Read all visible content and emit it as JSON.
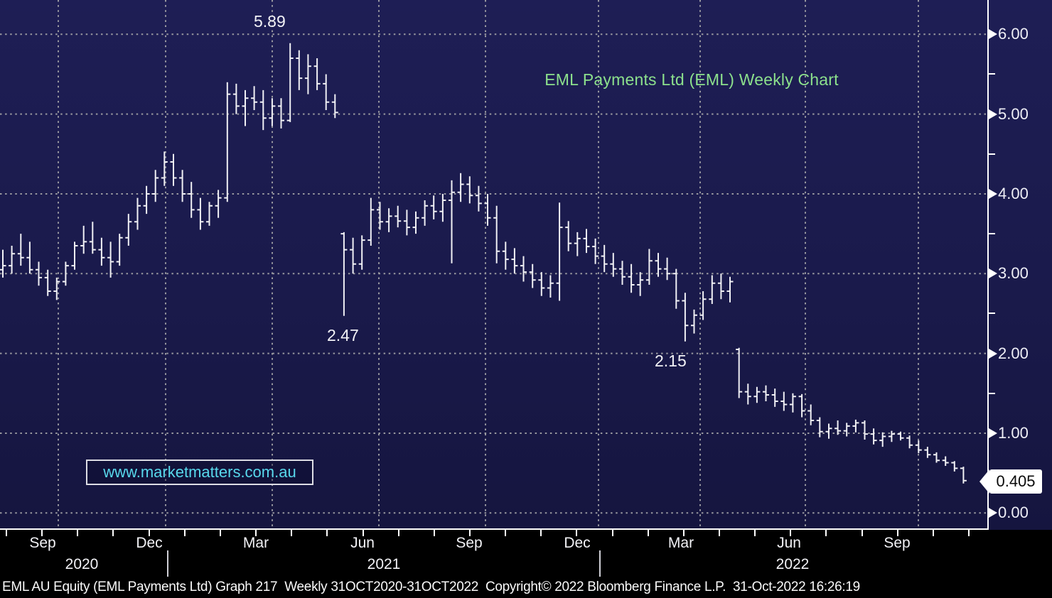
{
  "watermark": {
    "text": "www.marketmatters.com.au"
  },
  "footer": {
    "text": "EML AU Equity (EML Payments Ltd) Graph 217  Weekly 31OCT2020-31OCT2022  Copyright© 2022 Bloomberg Finance L.P.  31-Oct-2022 16:26:19"
  },
  "colors": {
    "background": "#1a1a4b",
    "bars": "#f0f0f4",
    "gridline": "#98989f",
    "title_green": "#8ce08c",
    "watermark_cyan": "#58d8ec",
    "axis_white": "#ffffff",
    "last_price_bg": "#ffffff",
    "last_price_text": "#0a0a0a",
    "footer_bg": "#000000"
  },
  "chart_data": {
    "type": "ohlc-bars",
    "title": "EML Payments Ltd (EML) Weekly Chart",
    "period": "Weekly",
    "ylabel": "",
    "xlabel": "",
    "ylim": [
      0,
      6.43
    ],
    "grid": true,
    "y_axis_side": "right",
    "y_ticks": [
      {
        "label": "6.00",
        "value": 6
      },
      {
        "label": "5.00",
        "value": 5
      },
      {
        "label": "4.00",
        "value": 4
      },
      {
        "label": "3.00",
        "value": 3
      },
      {
        "label": "2.00",
        "value": 2
      },
      {
        "label": "1.00",
        "value": 1
      },
      {
        "label": "0.00",
        "value": 0
      }
    ],
    "y_minor_ticks": [
      0.5,
      1.5,
      2.5,
      3.5,
      4.5,
      5.5
    ],
    "x_axis": {
      "month_labels": [
        "Sep",
        "Dec",
        "Mar",
        "Jun",
        "Sep",
        "Dec",
        "Mar",
        "Jun",
        "Sep"
      ],
      "year_labels": [
        "2020",
        "2021",
        "2022"
      ]
    },
    "annotations": [
      {
        "text": "5.89",
        "type": "peak-high",
        "value": 5.89
      },
      {
        "text": "2.47",
        "type": "crash-low",
        "value": 2.47
      },
      {
        "text": "2.15",
        "type": "swing-low",
        "value": 2.15
      }
    ],
    "last_price": {
      "label": "0.405",
      "value": 0.405
    },
    "bars_ohlc_note": "weekly bars [open, high, low, close], Aug 2020 - Oct 2022, estimated from pixels",
    "bars": [
      [
        3.05,
        3.3,
        2.95,
        3.1
      ],
      [
        3.1,
        3.35,
        3.0,
        3.25
      ],
      [
        3.25,
        3.5,
        3.1,
        3.2
      ],
      [
        3.2,
        3.4,
        3.0,
        3.05
      ],
      [
        3.05,
        3.15,
        2.85,
        2.95
      ],
      [
        2.95,
        3.05,
        2.72,
        2.78
      ],
      [
        2.78,
        2.95,
        2.67,
        2.9
      ],
      [
        2.9,
        3.15,
        2.85,
        3.1
      ],
      [
        3.1,
        3.4,
        3.05,
        3.35
      ],
      [
        3.35,
        3.6,
        3.25,
        3.4
      ],
      [
        3.4,
        3.65,
        3.25,
        3.3
      ],
      [
        3.3,
        3.45,
        3.1,
        3.2
      ],
      [
        3.2,
        3.4,
        2.95,
        3.15
      ],
      [
        3.15,
        3.5,
        3.1,
        3.45
      ],
      [
        3.45,
        3.75,
        3.35,
        3.65
      ],
      [
        3.65,
        3.95,
        3.55,
        3.85
      ],
      [
        3.85,
        4.1,
        3.75,
        4.0
      ],
      [
        4.0,
        4.3,
        3.9,
        4.2
      ],
      [
        4.2,
        4.53,
        4.1,
        4.4
      ],
      [
        4.4,
        4.5,
        4.1,
        4.2
      ],
      [
        4.2,
        4.3,
        3.9,
        4.0
      ],
      [
        4.0,
        4.15,
        3.7,
        3.8
      ],
      [
        3.8,
        3.95,
        3.55,
        3.65
      ],
      [
        3.65,
        3.9,
        3.6,
        3.85
      ],
      [
        3.85,
        4.05,
        3.7,
        3.95
      ],
      [
        3.95,
        5.4,
        3.9,
        5.25
      ],
      [
        5.25,
        5.38,
        5.0,
        5.1
      ],
      [
        5.1,
        5.3,
        4.85,
        5.2
      ],
      [
        5.2,
        5.35,
        5.05,
        5.15
      ],
      [
        5.15,
        5.3,
        4.8,
        4.95
      ],
      [
        4.95,
        5.2,
        4.85,
        5.1
      ],
      [
        5.1,
        5.2,
        4.82,
        4.92
      ],
      [
        4.92,
        5.89,
        4.9,
        5.7
      ],
      [
        5.7,
        5.8,
        5.3,
        5.45
      ],
      [
        5.45,
        5.75,
        5.25,
        5.6
      ],
      [
        5.6,
        5.7,
        5.3,
        5.38
      ],
      [
        5.38,
        5.5,
        5.05,
        5.15
      ],
      [
        5.15,
        5.25,
        4.95,
        5.02
      ],
      [
        3.5,
        3.52,
        2.47,
        3.3
      ],
      [
        3.3,
        3.45,
        3.0,
        3.12
      ],
      [
        3.12,
        3.48,
        3.05,
        3.42
      ],
      [
        3.42,
        3.95,
        3.35,
        3.8
      ],
      [
        3.8,
        3.9,
        3.55,
        3.65
      ],
      [
        3.65,
        3.82,
        3.52,
        3.72
      ],
      [
        3.72,
        3.85,
        3.58,
        3.66
      ],
      [
        3.66,
        3.8,
        3.48,
        3.58
      ],
      [
        3.58,
        3.78,
        3.5,
        3.7
      ],
      [
        3.7,
        3.92,
        3.6,
        3.85
      ],
      [
        3.85,
        3.98,
        3.68,
        3.78
      ],
      [
        3.78,
        4.0,
        3.65,
        3.92
      ],
      [
        3.92,
        4.17,
        3.13,
        4.02
      ],
      [
        4.02,
        4.26,
        3.9,
        4.12
      ],
      [
        4.12,
        4.22,
        3.88,
        3.98
      ],
      [
        3.98,
        4.1,
        3.78,
        3.88
      ],
      [
        3.88,
        4.0,
        3.6,
        3.7
      ],
      [
        3.7,
        3.85,
        3.13,
        3.28
      ],
      [
        3.28,
        3.4,
        3.05,
        3.18
      ],
      [
        3.18,
        3.32,
        3.0,
        3.1
      ],
      [
        3.1,
        3.22,
        2.9,
        3.02
      ],
      [
        3.02,
        3.12,
        2.82,
        2.92
      ],
      [
        2.92,
        3.02,
        2.72,
        2.82
      ],
      [
        2.82,
        2.98,
        2.7,
        2.88
      ],
      [
        2.88,
        3.89,
        2.66,
        3.58
      ],
      [
        3.58,
        3.66,
        3.28,
        3.38
      ],
      [
        3.38,
        3.52,
        3.22,
        3.44
      ],
      [
        3.44,
        3.56,
        3.26,
        3.34
      ],
      [
        3.34,
        3.44,
        3.12,
        3.22
      ],
      [
        3.22,
        3.36,
        3.02,
        3.12
      ],
      [
        3.12,
        3.26,
        2.96,
        3.06
      ],
      [
        3.06,
        3.16,
        2.86,
        2.96
      ],
      [
        2.96,
        3.12,
        2.76,
        2.86
      ],
      [
        2.86,
        3.02,
        2.72,
        2.92
      ],
      [
        2.92,
        3.31,
        2.86,
        3.16
      ],
      [
        3.16,
        3.26,
        2.96,
        3.06
      ],
      [
        3.06,
        3.2,
        2.92,
        3.0
      ],
      [
        3.0,
        3.06,
        2.56,
        2.66
      ],
      [
        2.66,
        2.76,
        2.15,
        2.35
      ],
      [
        2.35,
        2.55,
        2.25,
        2.48
      ],
      [
        2.48,
        2.78,
        2.42,
        2.68
      ],
      [
        2.68,
        2.98,
        2.62,
        2.88
      ],
      [
        2.88,
        3.0,
        2.68,
        2.78
      ],
      [
        2.78,
        2.96,
        2.64,
        2.9
      ],
      [
        2.05,
        2.07,
        1.44,
        1.52
      ],
      [
        1.52,
        1.62,
        1.36,
        1.46
      ],
      [
        1.46,
        1.58,
        1.38,
        1.52
      ],
      [
        1.52,
        1.6,
        1.4,
        1.48
      ],
      [
        1.48,
        1.56,
        1.33,
        1.4
      ],
      [
        1.4,
        1.52,
        1.28,
        1.36
      ],
      [
        1.36,
        1.5,
        1.26,
        1.46
      ],
      [
        1.46,
        1.49,
        1.2,
        1.28
      ],
      [
        1.28,
        1.36,
        1.1,
        1.16
      ],
      [
        1.16,
        1.2,
        0.95,
        1.02
      ],
      [
        1.02,
        1.12,
        0.93,
        1.06
      ],
      [
        1.06,
        1.16,
        0.98,
        1.03
      ],
      [
        1.03,
        1.13,
        0.96,
        1.09
      ],
      [
        1.09,
        1.17,
        1.01,
        1.13
      ],
      [
        1.13,
        1.16,
        0.92,
        0.99
      ],
      [
        0.99,
        1.06,
        0.86,
        0.91
      ],
      [
        0.91,
        1.01,
        0.83,
        0.96
      ],
      [
        0.96,
        1.03,
        0.89,
        0.99
      ],
      [
        0.99,
        1.02,
        0.91,
        0.94
      ],
      [
        0.94,
        0.97,
        0.81,
        0.85
      ],
      [
        0.85,
        0.91,
        0.75,
        0.79
      ],
      [
        0.79,
        0.83,
        0.69,
        0.73
      ],
      [
        0.73,
        0.76,
        0.63,
        0.66
      ],
      [
        0.66,
        0.71,
        0.59,
        0.63
      ],
      [
        0.63,
        0.65,
        0.52,
        0.56
      ],
      [
        0.56,
        0.58,
        0.37,
        0.405
      ]
    ]
  }
}
